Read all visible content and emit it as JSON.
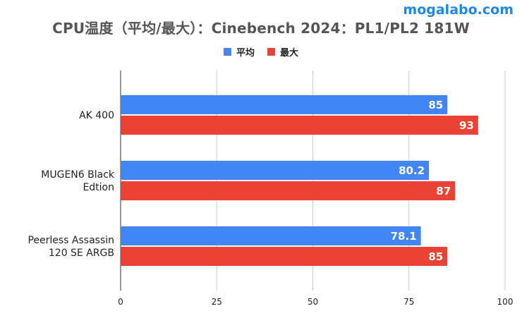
{
  "watermark": "mogalabo.com",
  "chart_data": {
    "type": "bar",
    "orientation": "horizontal",
    "title": "CPU温度（平均/最大）：Cinebench 2024：PL1/PL2 181W",
    "categories": [
      [
        "AK 400"
      ],
      [
        "MUGEN6 Black",
        "Edtion"
      ],
      [
        "Peerless Assassin",
        "120 SE ARGB"
      ]
    ],
    "series": [
      {
        "name": "平均",
        "color": "#4285f4",
        "values": [
          85,
          80.2,
          78.1
        ]
      },
      {
        "name": "最大",
        "color": "#ea4335",
        "values": [
          93,
          87,
          85
        ]
      }
    ],
    "xlim": [
      0,
      100
    ],
    "xticks": [
      0,
      25,
      50,
      75,
      100
    ],
    "grid": true,
    "legend": "top-center"
  }
}
